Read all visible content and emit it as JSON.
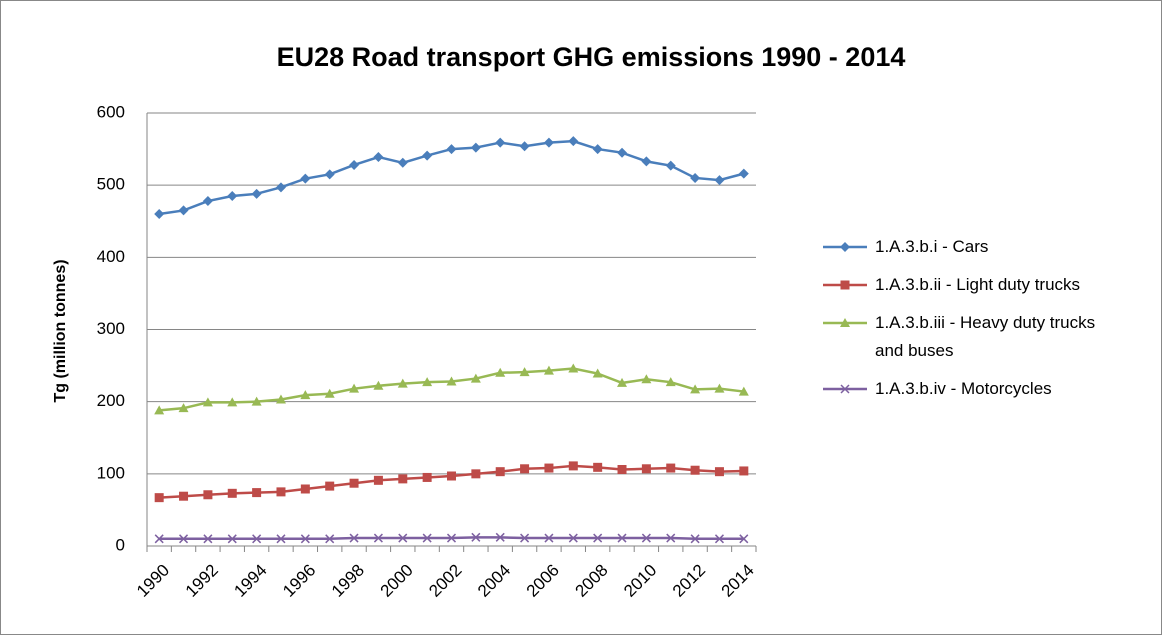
{
  "chart_data": {
    "type": "line",
    "title": "EU28 Road transport GHG emissions 1990 - 2014",
    "y_label": "Tg (million tonnes)",
    "categories": [
      1990,
      null,
      1992,
      null,
      1994,
      null,
      1996,
      null,
      1998,
      null,
      2000,
      null,
      2002,
      null,
      2004,
      null,
      2006,
      null,
      2008,
      null,
      2010,
      null,
      2012,
      null,
      2014
    ],
    "series": [
      {
        "name": "1.A.3.b.i - Cars",
        "color": "#4a7ebb",
        "marker": "diamond",
        "values": [
          460,
          465,
          478,
          485,
          488,
          497,
          509,
          515,
          528,
          539,
          531,
          541,
          550,
          552,
          559,
          554,
          559,
          561,
          550,
          545,
          533,
          527,
          510,
          507,
          516
        ]
      },
      {
        "name": "1.A.3.b.ii - Light duty trucks",
        "color": "#be4b48",
        "marker": "square",
        "values": [
          67,
          69,
          71,
          73,
          74,
          75,
          79,
          83,
          87,
          91,
          93,
          95,
          97,
          100,
          103,
          107,
          108,
          111,
          109,
          106,
          107,
          108,
          105,
          103,
          104
        ]
      },
      {
        "name": "1.A.3.b.iii - Heavy duty trucks and buses",
        "color": "#98b954",
        "marker": "triangle",
        "values": [
          188,
          191,
          199,
          199,
          200,
          203,
          209,
          211,
          218,
          222,
          225,
          227,
          228,
          232,
          240,
          241,
          243,
          246,
          239,
          226,
          231,
          227,
          217,
          218,
          214
        ]
      },
      {
        "name": "1.A.3.b.iv - Motorcycles",
        "color": "#7d60a0",
        "marker": "x",
        "values": [
          10,
          10,
          10,
          10,
          10,
          10,
          10,
          10,
          11,
          11,
          11,
          11,
          11,
          12,
          12,
          11,
          11,
          11,
          11,
          11,
          11,
          11,
          10,
          10,
          10
        ]
      }
    ],
    "ylim": [
      0,
      600
    ],
    "yticks": [
      0,
      100,
      200,
      300,
      400,
      500,
      600
    ],
    "grid": true,
    "legend": "right"
  }
}
